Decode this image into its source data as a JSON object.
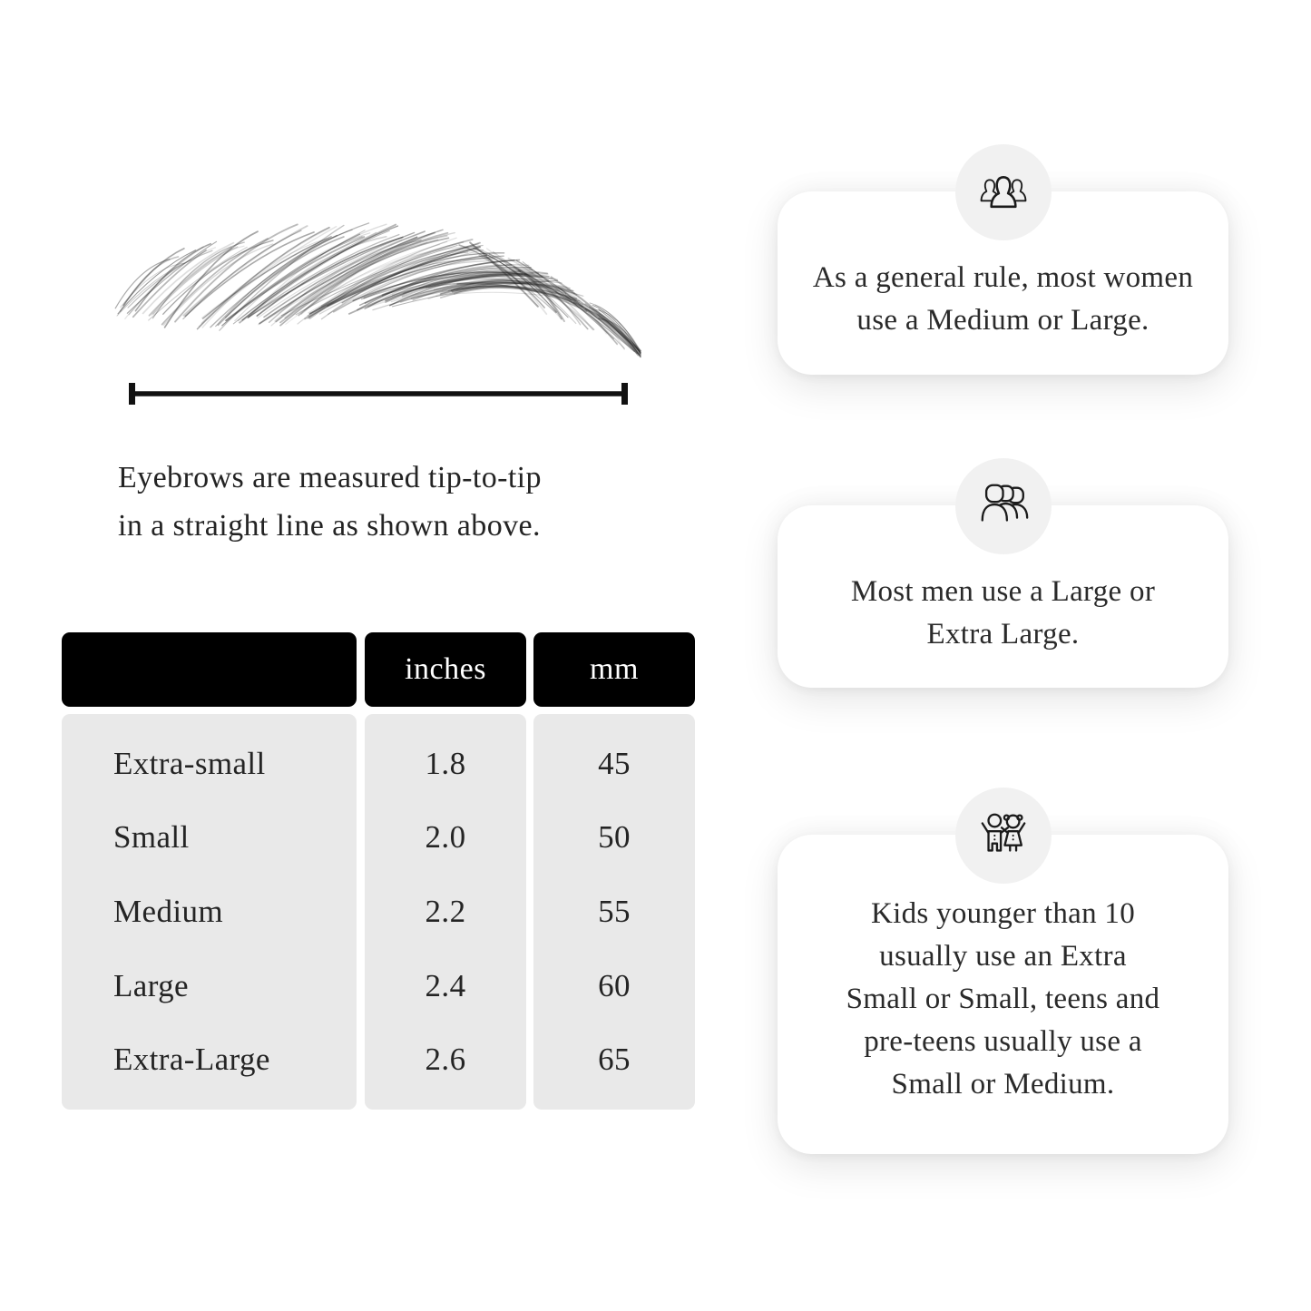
{
  "figure": {
    "caption": "Eyebrows are measured tip-to-tip\nin a straight line as shown above."
  },
  "table": {
    "header": {
      "size_label": "",
      "inches_label": "inches",
      "mm_label": "mm"
    },
    "rows": [
      {
        "size": "Extra-small",
        "inches": "1.8",
        "mm": "45"
      },
      {
        "size": "Small",
        "inches": "2.0",
        "mm": "50"
      },
      {
        "size": "Medium",
        "inches": "2.2",
        "mm": "55"
      },
      {
        "size": "Large",
        "inches": "2.4",
        "mm": "60"
      },
      {
        "size": "Extra-Large",
        "inches": "2.6",
        "mm": "65"
      }
    ]
  },
  "cards": [
    {
      "icon": "women-group-icon",
      "text": "As a general rule, most women\nuse a Medium or Large."
    },
    {
      "icon": "men-group-icon",
      "text": "Most men use a Large or\nExtra Large."
    },
    {
      "icon": "kids-icon",
      "text": "Kids younger than 10\nusually use an Extra\nSmall or Small, teens and\npre-teens usually use a\nSmall or Medium."
    }
  ],
  "colors": {
    "background": "#ffffff",
    "text": "#242424",
    "table_header_bg": "#000000",
    "table_header_text": "#ffffff",
    "table_body_bg": "#e9e9e9",
    "card_bg": "#ffffff",
    "icon_circle_bg": "#f1f1f1",
    "line_color": "#111111"
  }
}
